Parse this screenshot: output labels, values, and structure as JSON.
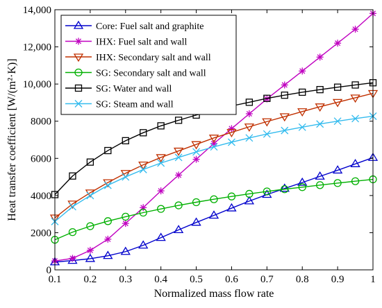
{
  "chart_data": {
    "type": "line",
    "xlabel": "Normalized mass flow rate",
    "ylabel": "Heat transfer coefficient [W/(m²·K)]",
    "xlim": [
      0.1,
      1.0
    ],
    "ylim": [
      0,
      14000
    ],
    "x_ticks": [
      0.1,
      0.2,
      0.3,
      0.4,
      0.5,
      0.6,
      0.7,
      0.8,
      0.9,
      1.0
    ],
    "x_tick_labels": [
      "0.1",
      "0.2",
      "0.3",
      "0.4",
      "0.5",
      "0.6",
      "0.7",
      "0.8",
      "0.9",
      "1"
    ],
    "y_ticks": [
      0,
      2000,
      4000,
      6000,
      8000,
      10000,
      12000,
      14000
    ],
    "y_tick_labels": [
      "0",
      "2000",
      "4000",
      "6000",
      "8000",
      "10,000",
      "12,000",
      "14,000"
    ],
    "grid": false,
    "legend_position": "top-left",
    "x": [
      0.1,
      0.15,
      0.2,
      0.25,
      0.3,
      0.35,
      0.4,
      0.45,
      0.5,
      0.55,
      0.6,
      0.65,
      0.7,
      0.75,
      0.8,
      0.85,
      0.9,
      0.95,
      1.0
    ],
    "series": [
      {
        "name": "Core: Fuel salt and graphite",
        "color": "#0000cc",
        "marker": "triangle-up",
        "values": [
          420,
          500,
          600,
          760,
          980,
          1320,
          1730,
          2150,
          2550,
          2930,
          3320,
          3700,
          4050,
          4380,
          4700,
          5030,
          5360,
          5700,
          6040
        ]
      },
      {
        "name": "IHX: Fuel salt and wall",
        "color": "#c000c0",
        "marker": "asterisk",
        "values": [
          480,
          620,
          1050,
          1650,
          2500,
          3350,
          4250,
          5100,
          5950,
          6800,
          7600,
          8400,
          9200,
          9950,
          10700,
          11450,
          12200,
          12950,
          13800
        ]
      },
      {
        "name": "IHX: Secondary salt and wall",
        "color": "#c03000",
        "marker": "triangle-down",
        "values": [
          2800,
          3550,
          4150,
          4700,
          5200,
          5650,
          6050,
          6400,
          6750,
          7100,
          7400,
          7700,
          7980,
          8250,
          8520,
          8780,
          9020,
          9260,
          9500
        ]
      },
      {
        "name": "SG: Secondary salt and wall",
        "color": "#00b000",
        "marker": "circle",
        "values": [
          1620,
          2030,
          2350,
          2620,
          2860,
          3080,
          3280,
          3470,
          3640,
          3800,
          3950,
          4090,
          4220,
          4340,
          4450,
          4560,
          4670,
          4770,
          4870
        ]
      },
      {
        "name": "SG: Water and wall",
        "color": "#000000",
        "marker": "square",
        "values": [
          4050,
          5050,
          5800,
          6420,
          6950,
          7380,
          7750,
          8050,
          8330,
          8580,
          8820,
          9020,
          9230,
          9400,
          9560,
          9700,
          9830,
          9950,
          10070
        ]
      },
      {
        "name": "SG: Steam and wall",
        "color": "#33bbee",
        "marker": "cross",
        "values": [
          2600,
          3400,
          4000,
          4550,
          5000,
          5400,
          5750,
          6050,
          6350,
          6620,
          6870,
          7100,
          7310,
          7500,
          7680,
          7850,
          8000,
          8140,
          8270
        ]
      }
    ]
  }
}
